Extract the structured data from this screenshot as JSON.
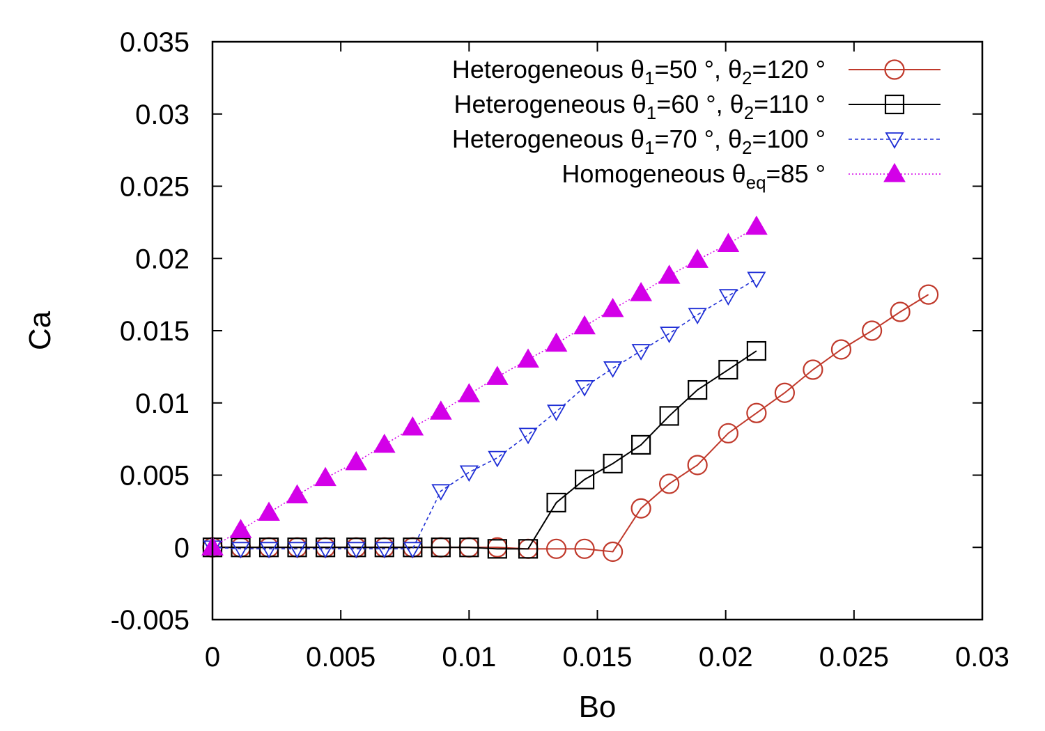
{
  "chart_data": {
    "type": "line",
    "title": "",
    "xlabel": "Bo",
    "ylabel": "Ca",
    "xlim": [
      0,
      0.03
    ],
    "ylim": [
      -0.005,
      0.035
    ],
    "xticks": [
      0,
      0.005,
      0.01,
      0.015,
      0.02,
      0.025,
      0.03
    ],
    "yticks": [
      -0.005,
      0,
      0.005,
      0.01,
      0.015,
      0.02,
      0.025,
      0.03,
      0.035
    ],
    "xtick_labels": [
      "0",
      "0.005",
      "0.01",
      "0.015",
      "0.02",
      "0.025",
      "0.03"
    ],
    "ytick_labels": [
      "-0.005",
      "0",
      "0.005",
      "0.01",
      "0.015",
      "0.02",
      "0.025",
      "0.03",
      "0.035"
    ],
    "grid": false,
    "legend_position": "top-right",
    "series": [
      {
        "name": "Heterogeneous θ1=50 °, θ2=120 °",
        "legend_parts": [
          "Heterogeneous θ",
          "1",
          "=50 °, θ",
          "2",
          "=120 °"
        ],
        "marker": "open-circle",
        "line_style": "solid",
        "color": "#c0392b",
        "x": [
          0,
          0.0011,
          0.0022,
          0.0033,
          0.0044,
          0.0056,
          0.0067,
          0.0078,
          0.0089,
          0.01,
          0.0111,
          0.0123,
          0.0134,
          0.0145,
          0.0156,
          0.0167,
          0.0178,
          0.0189,
          0.0201,
          0.0212,
          0.0223,
          0.0234,
          0.0245,
          0.0257,
          0.0268,
          0.0279
        ],
        "y": [
          0,
          0,
          0,
          0,
          0,
          0,
          0,
          0,
          0,
          0,
          0,
          -0.0001,
          -0.0001,
          -0.0001,
          -0.0003,
          0.0027,
          0.0044,
          0.0057,
          0.0079,
          0.0093,
          0.0107,
          0.0123,
          0.0137,
          0.015,
          0.0163,
          0.0175
        ]
      },
      {
        "name": "Heterogeneous θ1=60 °, θ2=110 °",
        "legend_parts": [
          "Heterogeneous θ",
          "1",
          "=60 °, θ",
          "2",
          "=110 °"
        ],
        "marker": "open-square",
        "line_style": "solid",
        "color": "#000000",
        "x": [
          0,
          0.0011,
          0.0022,
          0.0033,
          0.0044,
          0.0056,
          0.0067,
          0.0078,
          0.0089,
          0.01,
          0.0111,
          0.0123,
          0.0134,
          0.0145,
          0.0156,
          0.0167,
          0.0178,
          0.0189,
          0.0201,
          0.0212
        ],
        "y": [
          0,
          0,
          0,
          0,
          0,
          0,
          0,
          0,
          0,
          0,
          -0.0001,
          -0.0001,
          0.0031,
          0.0047,
          0.0058,
          0.0071,
          0.0091,
          0.0109,
          0.0123,
          0.0136
        ]
      },
      {
        "name": "Heterogeneous θ1=70 °, θ2=100 °",
        "legend_parts": [
          "Heterogeneous θ",
          "1",
          "=70 °, θ",
          "2",
          "=100 °"
        ],
        "marker": "open-triangle-down",
        "line_style": "dashed",
        "color": "#1f2fd6",
        "x": [
          0,
          0.0011,
          0.0022,
          0.0033,
          0.0044,
          0.0056,
          0.0067,
          0.0078,
          0.0089,
          0.01,
          0.0111,
          0.0123,
          0.0134,
          0.0145,
          0.0156,
          0.0167,
          0.0178,
          0.0189,
          0.0201,
          0.0212
        ],
        "y": [
          0,
          -0.0001,
          -0.0001,
          -0.0001,
          -0.0001,
          -0.0001,
          -0.0001,
          -0.0001,
          0.0039,
          0.0052,
          0.0062,
          0.0078,
          0.0094,
          0.0111,
          0.0124,
          0.0136,
          0.0148,
          0.0161,
          0.0174,
          0.0186
        ]
      },
      {
        "name": "Homogeneous θeq=85 °",
        "legend_parts": [
          "Homogeneous θ",
          "eq",
          "=85 °",
          "",
          ""
        ],
        "marker": "filled-triangle-up",
        "line_style": "dotted",
        "color": "#d300e8",
        "x": [
          0,
          0.0011,
          0.0022,
          0.0033,
          0.0044,
          0.0056,
          0.0067,
          0.0078,
          0.0089,
          0.01,
          0.0111,
          0.0123,
          0.0134,
          0.0145,
          0.0156,
          0.0167,
          0.0178,
          0.0189,
          0.0201,
          0.0212
        ],
        "y": [
          0,
          0.0012,
          0.0024,
          0.0036,
          0.0048,
          0.0059,
          0.0071,
          0.0083,
          0.0094,
          0.0106,
          0.0118,
          0.013,
          0.0141,
          0.0153,
          0.0165,
          0.0176,
          0.0188,
          0.0199,
          0.021,
          0.0222
        ]
      }
    ]
  }
}
